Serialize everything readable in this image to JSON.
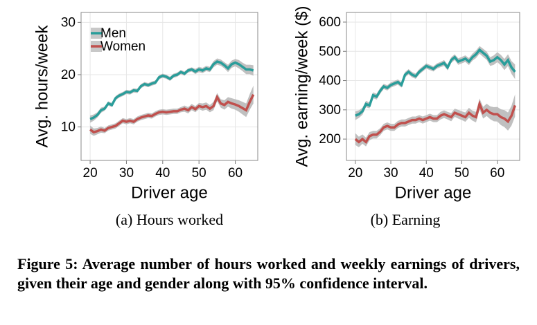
{
  "chart_data": [
    {
      "type": "line",
      "caption": "(a) Hours worked",
      "x_label": "Driver age",
      "y_label": "Avg. hours/week",
      "xlim": [
        17.5,
        66.2
      ],
      "ylim": [
        3.6,
        31.9
      ],
      "xticks": [
        20,
        30,
        40,
        50,
        60
      ],
      "yticks": [
        10,
        20,
        30
      ],
      "grid": true,
      "legend": "top-left",
      "x": [
        20,
        21,
        22,
        23,
        24,
        25,
        26,
        27,
        28,
        29,
        30,
        31,
        32,
        33,
        34,
        35,
        36,
        37,
        38,
        39,
        40,
        41,
        42,
        43,
        44,
        45,
        46,
        47,
        48,
        49,
        50,
        51,
        52,
        53,
        54,
        55,
        56,
        57,
        58,
        59,
        60,
        61,
        62,
        63,
        64,
        65
      ],
      "series": [
        {
          "name": "Men",
          "color": "#2a9d9a",
          "values": [
            11.5,
            11.8,
            12.3,
            13.2,
            13.5,
            14.5,
            14.2,
            15.5,
            16,
            16.3,
            16.7,
            16.6,
            17,
            16.9,
            17.8,
            18.2,
            18,
            18.3,
            18.5,
            19.5,
            19.8,
            19.6,
            19.2,
            19.8,
            20,
            20.5,
            20.2,
            20.8,
            21,
            20.6,
            21,
            20.8,
            21.2,
            21,
            22,
            22.5,
            22.3,
            21.8,
            21.2,
            22,
            22.3,
            22,
            21.5,
            21,
            21,
            20.8
          ],
          "ci": [
            0.7,
            0.6,
            0.5,
            0.5,
            0.4,
            0.4,
            0.4,
            0.4,
            0.4,
            0.4,
            0.4,
            0.4,
            0.4,
            0.4,
            0.4,
            0.4,
            0.4,
            0.4,
            0.4,
            0.4,
            0.4,
            0.4,
            0.4,
            0.4,
            0.4,
            0.4,
            0.4,
            0.4,
            0.4,
            0.5,
            0.5,
            0.5,
            0.5,
            0.5,
            0.6,
            0.6,
            0.6,
            0.6,
            0.7,
            0.7,
            0.7,
            0.8,
            0.8,
            0.9,
            0.9,
            1.0
          ]
        },
        {
          "name": "Women",
          "color": "#c0504d",
          "values": [
            9.5,
            9,
            9.2,
            9.5,
            9.3,
            9.8,
            10,
            10.2,
            10.7,
            11.2,
            11,
            11.2,
            11,
            11.5,
            11.8,
            12,
            12.2,
            12.1,
            12.5,
            12.8,
            12.9,
            12.8,
            12.9,
            13,
            13,
            13.3,
            13.5,
            13.2,
            13.8,
            13.4,
            14,
            13.8,
            14,
            13.5,
            14,
            15.7,
            14.5,
            14.2,
            14.8,
            14.5,
            14.3,
            14,
            13.6,
            13.2,
            14.8,
            16.2
          ],
          "ci": [
            0.8,
            0.7,
            0.6,
            0.6,
            0.5,
            0.5,
            0.5,
            0.5,
            0.5,
            0.5,
            0.5,
            0.5,
            0.5,
            0.5,
            0.5,
            0.5,
            0.5,
            0.5,
            0.5,
            0.5,
            0.5,
            0.5,
            0.5,
            0.5,
            0.5,
            0.5,
            0.6,
            0.6,
            0.6,
            0.6,
            0.6,
            0.7,
            0.7,
            0.7,
            0.8,
            0.8,
            0.8,
            0.9,
            0.9,
            1.0,
            1.0,
            1.1,
            1.2,
            1.3,
            1.5,
            1.7
          ]
        }
      ]
    },
    {
      "type": "line",
      "caption": "(b) Earning",
      "x_label": "Driver age",
      "y_label": "Avg. earning/week ($)",
      "xlim": [
        17.5,
        66.3
      ],
      "ylim": [
        127,
        633
      ],
      "xticks": [
        20,
        30,
        40,
        50,
        60
      ],
      "yticks": [
        200,
        300,
        400,
        500,
        600
      ],
      "grid": true,
      "x": [
        20,
        21,
        22,
        23,
        24,
        25,
        26,
        27,
        28,
        29,
        30,
        31,
        32,
        33,
        34,
        35,
        36,
        37,
        38,
        39,
        40,
        41,
        42,
        43,
        44,
        45,
        46,
        47,
        48,
        49,
        50,
        51,
        52,
        53,
        54,
        55,
        56,
        57,
        58,
        59,
        60,
        61,
        62,
        63,
        64,
        65
      ],
      "series": [
        {
          "color": "#2a9d9a",
          "values": [
            280,
            285,
            295,
            320,
            315,
            350,
            345,
            365,
            380,
            375,
            385,
            390,
            395,
            385,
            420,
            430,
            420,
            415,
            430,
            440,
            450,
            445,
            440,
            450,
            455,
            460,
            445,
            470,
            480,
            465,
            470,
            475,
            465,
            480,
            490,
            505,
            495,
            485,
            465,
            470,
            480,
            470,
            455,
            470,
            445,
            430
          ],
          "ci": [
            15,
            13,
            12,
            11,
            10,
            10,
            10,
            10,
            9,
            9,
            9,
            9,
            9,
            9,
            9,
            9,
            9,
            9,
            9,
            9,
            9,
            9,
            9,
            9,
            9,
            10,
            10,
            10,
            10,
            11,
            11,
            11,
            12,
            12,
            13,
            13,
            14,
            14,
            15,
            16,
            17,
            18,
            19,
            20,
            22,
            25
          ]
        },
        {
          "color": "#c0504d",
          "values": [
            200,
            190,
            200,
            190,
            210,
            215,
            215,
            225,
            240,
            245,
            240,
            240,
            250,
            255,
            255,
            260,
            265,
            265,
            270,
            265,
            270,
            275,
            270,
            270,
            280,
            285,
            280,
            275,
            290,
            285,
            280,
            275,
            290,
            280,
            275,
            320,
            290,
            300,
            290,
            285,
            285,
            275,
            270,
            260,
            280,
            315
          ],
          "ci": [
            20,
            18,
            16,
            15,
            14,
            13,
            13,
            12,
            12,
            12,
            12,
            12,
            12,
            12,
            12,
            12,
            12,
            12,
            12,
            12,
            12,
            12,
            12,
            12,
            13,
            13,
            13,
            14,
            14,
            15,
            15,
            16,
            17,
            17,
            18,
            19,
            20,
            21,
            22,
            24,
            25,
            27,
            29,
            31,
            34,
            38
          ]
        }
      ]
    }
  ],
  "figure_caption": "Figure 5: Average number of hours worked and weekly earnings of drivers, given their age and gender along with 95% confidence interval."
}
